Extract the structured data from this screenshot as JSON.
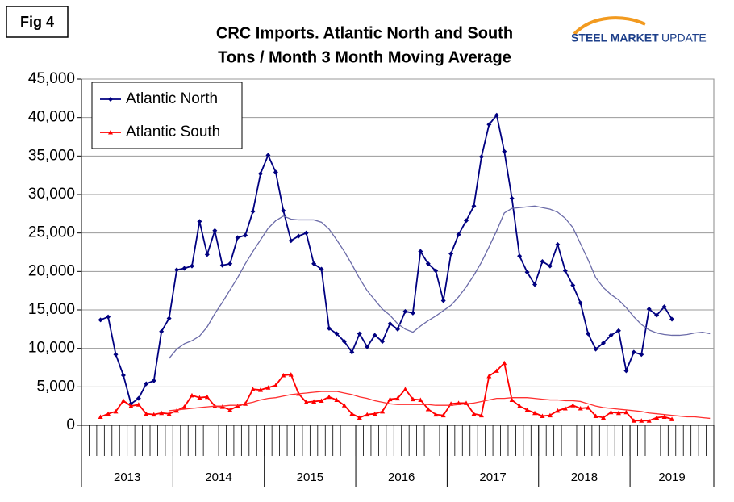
{
  "figure_label": "Fig 4",
  "logo": {
    "brand": "STEEL MARKET",
    "tag": "UPDATE"
  },
  "chart_data": {
    "type": "line",
    "title": [
      "CRC Imports. Atlantic North and South",
      "Tons / Month 3 Month Moving Average"
    ],
    "categories": [
      "2013",
      "2013",
      "2013",
      "2013",
      "2013",
      "2013",
      "2013",
      "2013",
      "2013",
      "2013",
      "2013",
      "2013",
      "2014",
      "2014",
      "2014",
      "2014",
      "2014",
      "2014",
      "2014",
      "2014",
      "2014",
      "2014",
      "2014",
      "2014",
      "2015",
      "2015",
      "2015",
      "2015",
      "2015",
      "2015",
      "2015",
      "2015",
      "2015",
      "2015",
      "2015",
      "2015",
      "2016",
      "2016",
      "2016",
      "2016",
      "2016",
      "2016",
      "2016",
      "2016",
      "2016",
      "2016",
      "2016",
      "2016",
      "2017",
      "2017",
      "2017",
      "2017",
      "2017",
      "2017",
      "2017",
      "2017",
      "2017",
      "2017",
      "2017",
      "2017",
      "2018",
      "2018",
      "2018",
      "2018",
      "2018",
      "2018",
      "2018",
      "2018",
      "2018",
      "2018",
      "2018",
      "2018",
      "2019",
      "2019",
      "2019",
      "2019",
      "2019",
      "2019",
      "2019",
      "2019",
      "2019",
      "2019",
      "2019"
    ],
    "ylim": [
      0,
      45000
    ],
    "yticks": [
      0,
      {
        "value": 5000,
        "label": "5,000"
      },
      {
        "value": 10000,
        "label": "10,000"
      },
      {
        "value": 15000,
        "label": "15,000"
      },
      {
        "value": 20000,
        "label": "20,000"
      },
      {
        "value": 25000,
        "label": "25,000"
      },
      {
        "value": 30000,
        "label": "30,000"
      },
      {
        "value": 35000,
        "label": "35,000"
      },
      {
        "value": 40000,
        "label": "40,000"
      },
      {
        "value": 45000,
        "label": "45,000"
      }
    ],
    "grid": true,
    "legend": "top-left",
    "series": [
      {
        "name": "Atlantic North",
        "color": "#000080",
        "marker": "diamond",
        "values": [
          null,
          null,
          13700,
          14100,
          9200,
          6500,
          2800,
          3500,
          5400,
          5800,
          12200,
          13900,
          20200,
          20400,
          20700,
          26500,
          22200,
          25300,
          20800,
          21000,
          24400,
          24700,
          27800,
          32700,
          35100,
          32900,
          27900,
          24000,
          24600,
          25000,
          21000,
          20300,
          12600,
          11900,
          10900,
          9500,
          11900,
          10200,
          11700,
          10900,
          13200,
          12500,
          14800,
          14600,
          22600,
          21000,
          20100,
          16200,
          22300,
          24800,
          26600,
          28500,
          34900,
          39100,
          40300,
          35600,
          29500,
          22000,
          19900,
          18300,
          21300,
          20700,
          23500,
          20100,
          18200,
          15900,
          11900,
          9900,
          10700,
          11700,
          12300,
          7100,
          9500,
          9200,
          15100,
          14300,
          15400,
          13800,
          null,
          null,
          null,
          null,
          null
        ]
      },
      {
        "name": "Atlantic South",
        "color": "#ff0000",
        "marker": "triangle",
        "values": [
          null,
          null,
          1100,
          1500,
          1800,
          3200,
          2500,
          2700,
          1500,
          1400,
          1600,
          1500,
          1900,
          2400,
          3900,
          3600,
          3700,
          2500,
          2400,
          2000,
          2500,
          2800,
          4700,
          4600,
          4900,
          5200,
          6500,
          6600,
          4100,
          3000,
          3100,
          3200,
          3700,
          3300,
          2600,
          1500,
          1000,
          1400,
          1500,
          1800,
          3400,
          3500,
          4700,
          3400,
          3300,
          2100,
          1400,
          1300,
          2800,
          2900,
          2900,
          1500,
          1300,
          6400,
          7100,
          8100,
          3300,
          2500,
          2000,
          1600,
          1200,
          1300,
          1900,
          2200,
          2600,
          2200,
          2300,
          1200,
          1000,
          1700,
          1600,
          1700,
          600,
          600,
          600,
          1000,
          1100,
          800,
          null,
          null,
          null,
          null,
          null
        ]
      },
      {
        "color": "#6b6ba8",
        "values": [
          null,
          null,
          null,
          null,
          null,
          null,
          null,
          null,
          null,
          null,
          null,
          8700,
          9900,
          10600,
          11000,
          11600,
          12800,
          14500,
          16000,
          17600,
          19200,
          21000,
          22600,
          24100,
          25600,
          26600,
          27200,
          26800,
          26700,
          26700,
          26700,
          26400,
          25500,
          24100,
          22600,
          20900,
          19100,
          17500,
          16300,
          15100,
          14300,
          13200,
          12500,
          12100,
          12900,
          13600,
          14200,
          14900,
          15600,
          16700,
          18000,
          19500,
          21200,
          23200,
          25300,
          27600,
          28200,
          28300,
          28400,
          28500,
          28300,
          28100,
          27700,
          26900,
          25700,
          23600,
          21500,
          19200,
          17900,
          17000,
          16300,
          15300,
          14100,
          13100,
          12400,
          12000,
          11800,
          11700,
          11700,
          11800,
          12000,
          12100,
          11900
        ]
      },
      {
        "color": "#ff3030",
        "values": [
          null,
          null,
          null,
          null,
          null,
          null,
          null,
          null,
          null,
          null,
          null,
          1900,
          2000,
          2100,
          2200,
          2300,
          2400,
          2500,
          2500,
          2600,
          2600,
          2800,
          3000,
          3300,
          3500,
          3600,
          3800,
          4000,
          4100,
          4200,
          4300,
          4400,
          4400,
          4400,
          4200,
          4000,
          3700,
          3500,
          3200,
          3000,
          2800,
          2700,
          2700,
          2700,
          2700,
          2700,
          2600,
          2600,
          2600,
          2700,
          2800,
          2900,
          3100,
          3300,
          3500,
          3500,
          3600,
          3600,
          3600,
          3500,
          3400,
          3300,
          3300,
          3200,
          3200,
          3100,
          2800,
          2500,
          2300,
          2200,
          2100,
          2000,
          1900,
          1800,
          1600,
          1500,
          1400,
          1300,
          1200,
          1100,
          1100,
          1000,
          900
        ]
      }
    ]
  }
}
